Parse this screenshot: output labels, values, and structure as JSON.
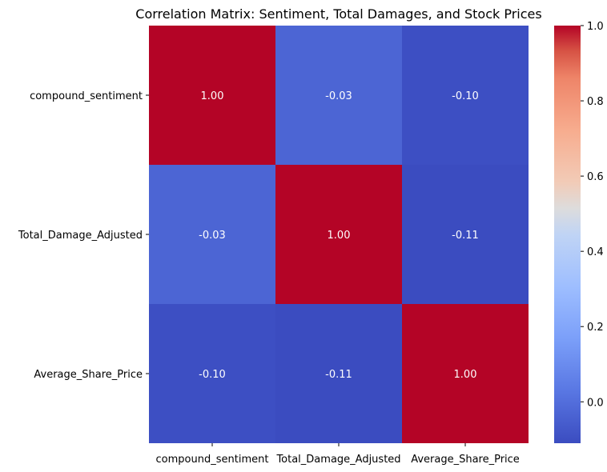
{
  "chart_data": {
    "type": "heatmap",
    "title": "Correlation Matrix: Sentiment, Total Damages, and Stock Prices",
    "x_labels": [
      "compound_sentiment",
      "Total_Damage_Adjusted",
      "Average_Share_Price"
    ],
    "y_labels": [
      "compound_sentiment",
      "Total_Damage_Adjusted",
      "Average_Share_Price"
    ],
    "values": [
      [
        1.0,
        -0.03,
        -0.1
      ],
      [
        -0.03,
        1.0,
        -0.11
      ],
      [
        -0.1,
        -0.11,
        1.0
      ]
    ],
    "annotations": [
      [
        "1.00",
        "-0.03",
        "-0.10"
      ],
      [
        "-0.03",
        "1.00",
        "-0.11"
      ],
      [
        "-0.10",
        "-0.11",
        "1.00"
      ]
    ],
    "colormap": "coolwarm",
    "vmin": -0.11,
    "vmax": 1.0,
    "colorbar_ticks": [
      0.0,
      0.2,
      0.4,
      0.6,
      0.8,
      1.0
    ],
    "colorbar_tick_labels": [
      "0.0",
      "0.2",
      "0.4",
      "0.6",
      "0.8",
      "1.0"
    ]
  }
}
